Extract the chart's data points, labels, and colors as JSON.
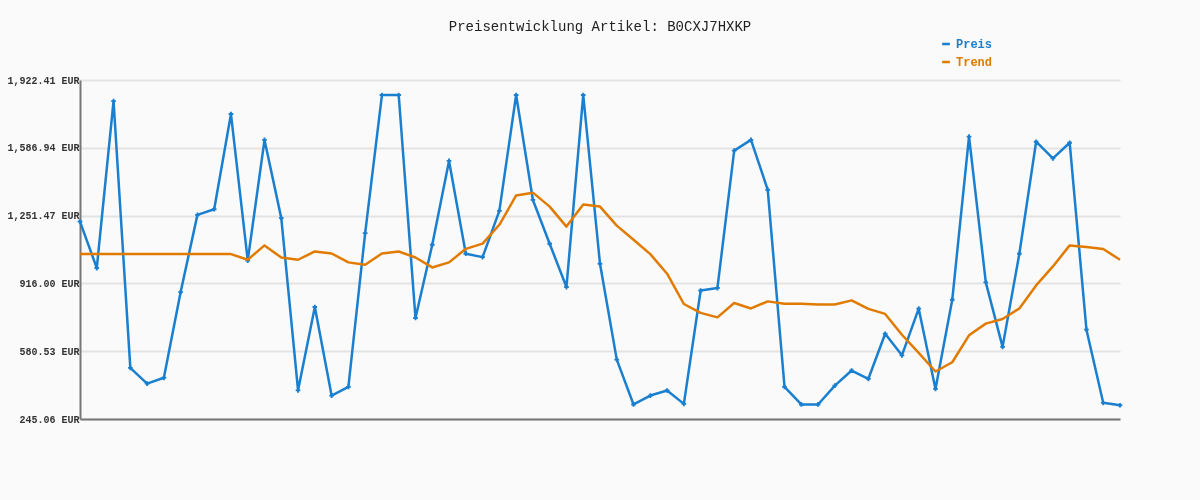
{
  "chart_data": {
    "type": "line",
    "title": "Preisentwicklung Artikel: B0CXJ7HXKP",
    "categories": [
      null,
      null,
      null,
      null,
      null,
      null,
      null,
      null,
      null,
      null,
      null,
      null,
      null,
      null,
      null,
      null,
      null,
      null,
      null,
      null,
      null,
      null,
      null,
      null,
      null,
      null,
      null,
      null,
      null,
      null,
      null,
      null,
      null,
      null,
      null,
      null,
      null,
      null,
      null,
      null,
      null,
      null,
      null,
      null,
      null,
      null,
      null,
      null,
      null,
      null,
      null,
      null,
      null,
      null,
      null,
      null,
      null,
      null,
      null,
      null,
      null,
      null,
      null
    ],
    "series": [
      {
        "name": "Preis",
        "color": "#1a7fcf",
        "values": [
          1222,
          992,
          1818,
          498,
          420,
          449,
          873,
          1255,
          1283,
          1754,
          1029,
          1626,
          1239,
          387,
          799,
          361,
          404,
          1165,
          1848,
          1848,
          745,
          1107,
          1522,
          1063,
          1046,
          1275,
          1848,
          1329,
          1112,
          898,
          1848,
          1013,
          539,
          317,
          361,
          386,
          320,
          881,
          893,
          1573,
          1626,
          1379,
          404,
          317,
          317,
          410,
          485,
          444,
          667,
          560,
          791,
          394,
          835,
          1642,
          921,
          602,
          1063,
          1617,
          1535,
          1612,
          687,
          325,
          313
        ]
      },
      {
        "name": "Trend",
        "color": "#e07b00",
        "marker": "none",
        "values": [
          1061,
          1061,
          1061,
          1061,
          1061,
          1061,
          1061,
          1061,
          1061,
          1061,
          1033,
          1104,
          1044,
          1033,
          1074,
          1064,
          1020,
          1008,
          1064,
          1074,
          1044,
          995,
          1020,
          1087,
          1113,
          1206,
          1351,
          1365,
          1296,
          1197,
          1306,
          1296,
          1202,
          1132,
          1061,
          964,
          814,
          770,
          748,
          819,
          792,
          827,
          815,
          815,
          812,
          812,
          832,
          790,
          765,
          662,
          572,
          480,
          526,
          659,
          717,
          740,
          792,
          906,
          1000,
          1104,
          1096,
          1086,
          1033
        ]
      }
    ],
    "ylim": [
      245.06,
      1922.41
    ],
    "yticks": [
      {
        "value": 245.06,
        "label": "245.06 EUR"
      },
      {
        "value": 580.53,
        "label": "580.53 EUR"
      },
      {
        "value": 916.0,
        "label": "916.00 EUR"
      },
      {
        "value": 1251.47,
        "label": "1,251.47 EUR"
      },
      {
        "value": 1586.94,
        "label": "1,586.94 EUR"
      },
      {
        "value": 1922.41,
        "label": "1,922.41 EUR"
      }
    ],
    "grid": "y",
    "legend": "top right",
    "marker": "cross",
    "tick_labels": "y"
  }
}
